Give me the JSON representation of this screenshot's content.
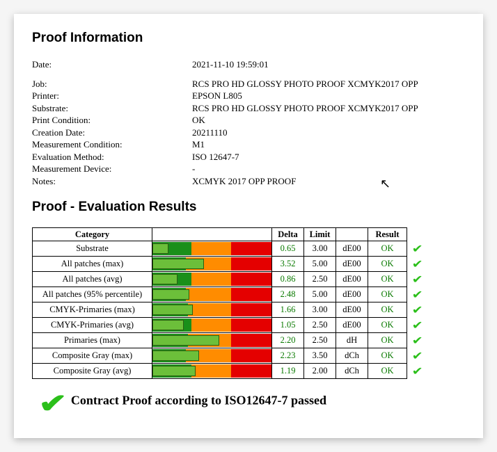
{
  "section_proof_info": "Proof Information",
  "section_results": "Proof - Evaluation Results",
  "info": {
    "date_label": "Date:",
    "date_value": "2021-11-10 19:59:01",
    "job_label": "Job:",
    "job_value": "RCS PRO HD GLOSSY PHOTO PROOF XCMYK2017 OPP",
    "printer_label": "Printer:",
    "printer_value": "EPSON L805",
    "substrate_label": "Substrate:",
    "substrate_value": "RCS PRO HD GLOSSY PHOTO PROOF XCMYK2017 OPP",
    "print_condition_label": "Print Condition:",
    "print_condition_value": "OK",
    "creation_date_label": "Creation Date:",
    "creation_date_value": "20211110",
    "meas_cond_label": "Measurement Condition:",
    "meas_cond_value": "M1",
    "eval_method_label": "Evaluation Method:",
    "eval_method_value": "ISO 12647-7",
    "meas_device_label": "Measurement Device:",
    "meas_device_value": "-",
    "notes_label": "Notes:",
    "notes_value": "XCMYK 2017 OPP PROOF"
  },
  "headers": {
    "category": "Category",
    "delta": "Delta",
    "limit": "Limit",
    "result": "Result"
  },
  "rows": [
    {
      "cat": "Substrate",
      "delta": "0.65",
      "limit": "3.00",
      "unit": "dE00",
      "res": "OK",
      "bar_pct": 12,
      "g": 33,
      "o": 33,
      "r": 34
    },
    {
      "cat": "All patches (max)",
      "delta": "3.52",
      "limit": "5.00",
      "unit": "dE00",
      "res": "OK",
      "bar_pct": 42,
      "g": 28,
      "o": 38,
      "r": 34
    },
    {
      "cat": "All patches (avg)",
      "delta": "0.86",
      "limit": "2.50",
      "unit": "dE00",
      "res": "OK",
      "bar_pct": 20,
      "g": 33,
      "o": 33,
      "r": 34
    },
    {
      "cat": "All patches (95% percentile)",
      "delta": "2.48",
      "limit": "5.00",
      "unit": "dE00",
      "res": "OK",
      "bar_pct": 30,
      "g": 28,
      "o": 38,
      "r": 34
    },
    {
      "cat": "CMYK-Primaries (max)",
      "delta": "1.66",
      "limit": "3.00",
      "unit": "dE00",
      "res": "OK",
      "bar_pct": 33,
      "g": 30,
      "o": 36,
      "r": 34
    },
    {
      "cat": "CMYK-Primaries (avg)",
      "delta": "1.05",
      "limit": "2.50",
      "unit": "dE00",
      "res": "OK",
      "bar_pct": 25,
      "g": 33,
      "o": 33,
      "r": 34
    },
    {
      "cat": "Primaries (max)",
      "delta": "2.20",
      "limit": "2.50",
      "unit": "dH",
      "res": "OK",
      "bar_pct": 55,
      "g": 30,
      "o": 36,
      "r": 34
    },
    {
      "cat": "Composite Gray (max)",
      "delta": "2.23",
      "limit": "3.50",
      "unit": "dCh",
      "res": "OK",
      "bar_pct": 38,
      "g": 28,
      "o": 38,
      "r": 34
    },
    {
      "cat": "Composite Gray (avg)",
      "delta": "1.19",
      "limit": "2.00",
      "unit": "dCh",
      "res": "OK",
      "bar_pct": 35,
      "g": 33,
      "o": 33,
      "r": 34
    }
  ],
  "pass_text": "Contract Proof according to ISO12647-7 passed",
  "colors": {
    "green_zone": "#1a8f1a",
    "orange_zone": "#ff8c00",
    "red_zone": "#e40000",
    "bar_fill": "#6cbf3a",
    "bar_border": "#2b5e12",
    "value_green": "#0a7a00",
    "check_green": "#2bbf1a"
  }
}
